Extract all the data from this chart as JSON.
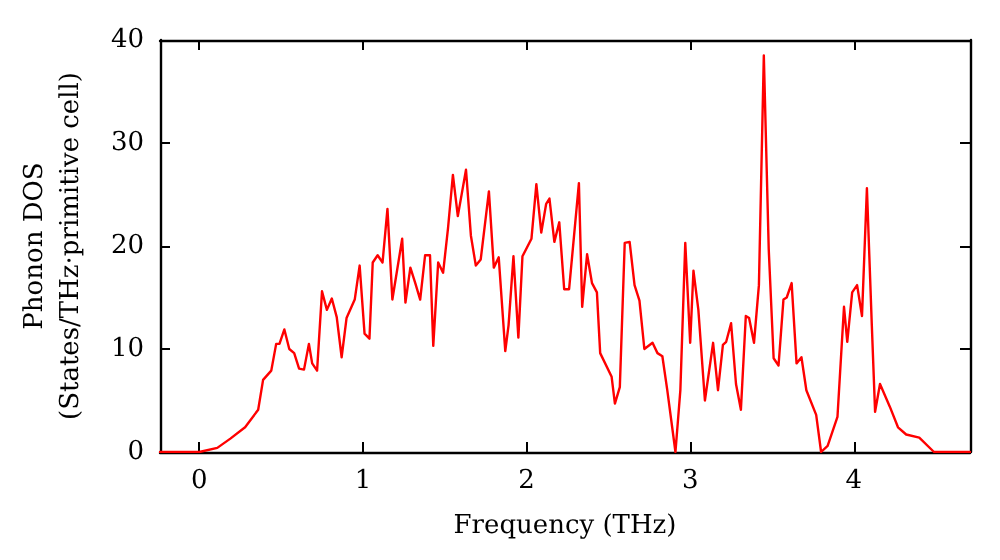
{
  "chart_data": {
    "type": "line",
    "xlabel": "Frequency (THz)",
    "ylabel": "Phonon DOS\n(States/THz·primitive cell)",
    "xlim": [
      -0.24,
      4.71
    ],
    "xticks": [
      0,
      1,
      2,
      3,
      4
    ],
    "ylim": [
      0,
      40
    ],
    "yticks": [
      0,
      10,
      20,
      30,
      40
    ],
    "marker": "none",
    "line_style": "solid",
    "series": [
      {
        "color": "#ff0000",
        "x": [
          -0.24,
          0,
          0.11,
          0.19,
          0.28,
          0.36,
          0.39,
          0.44,
          0.47,
          0.49,
          0.52,
          0.55,
          0.58,
          0.61,
          0.64,
          0.67,
          0.69,
          0.72,
          0.75,
          0.78,
          0.81,
          0.84,
          0.87,
          0.9,
          0.95,
          0.98,
          1.01,
          1.04,
          1.06,
          1.09,
          1.12,
          1.15,
          1.18,
          1.24,
          1.26,
          1.29,
          1.32,
          1.35,
          1.38,
          1.41,
          1.43,
          1.46,
          1.49,
          1.52,
          1.55,
          1.58,
          1.63,
          1.66,
          1.69,
          1.72,
          1.77,
          1.8,
          1.83,
          1.87,
          1.89,
          1.92,
          1.95,
          1.975,
          2.03,
          2.06,
          2.09,
          2.12,
          2.14,
          2.17,
          2.2,
          2.23,
          2.26,
          2.32,
          2.34,
          2.37,
          2.4,
          2.43,
          2.45,
          2.52,
          2.54,
          2.57,
          2.6,
          2.63,
          2.66,
          2.69,
          2.72,
          2.77,
          2.8,
          2.83,
          2.86,
          2.91,
          2.94,
          2.97,
          3.0,
          3.02,
          3.05,
          3.09,
          3.14,
          3.17,
          3.2,
          3.22,
          3.25,
          3.28,
          3.31,
          3.34,
          3.36,
          3.39,
          3.42,
          3.45,
          3.48,
          3.51,
          3.54,
          3.57,
          3.59,
          3.62,
          3.65,
          3.68,
          3.71,
          3.77,
          3.8,
          3.84,
          3.9,
          3.94,
          3.96,
          3.99,
          4.02,
          4.05,
          4.08,
          4.11,
          4.13,
          4.16,
          4.22,
          4.27,
          4.32,
          4.4,
          4.49,
          4.71
        ],
        "values": [
          0,
          0,
          0.4,
          1.3,
          2.4,
          4.1,
          7.0,
          7.9,
          10.5,
          10.5,
          11.9,
          10.0,
          9.6,
          8.1,
          8.0,
          10.5,
          8.6,
          7.9,
          15.6,
          13.8,
          14.9,
          13.1,
          9.2,
          13.0,
          14.8,
          18.1,
          11.5,
          11.0,
          18.4,
          19.1,
          18.4,
          23.6,
          14.8,
          20.7,
          14.5,
          17.9,
          16.4,
          14.8,
          19.1,
          19.1,
          10.3,
          18.4,
          17.4,
          21.7,
          26.9,
          22.9,
          27.4,
          21.0,
          18.1,
          18.7,
          25.3,
          17.9,
          18.9,
          9.8,
          12.3,
          19.0,
          11.1,
          19.0,
          20.7,
          26.0,
          21.3,
          24.1,
          24.6,
          20.4,
          22.3,
          15.8,
          15.8,
          26.1,
          14.1,
          19.2,
          16.4,
          15.5,
          9.6,
          7.3,
          4.7,
          6.3,
          20.3,
          20.4,
          16.2,
          14.7,
          10.0,
          10.6,
          9.6,
          9.3,
          6.0,
          0,
          6.0,
          20.3,
          10.6,
          17.6,
          13.8,
          5.0,
          10.6,
          6.0,
          10.4,
          10.7,
          12.5,
          6.6,
          4.1,
          13.2,
          13.0,
          10.6,
          16.2,
          38.5,
          19.7,
          9.1,
          8.4,
          14.8,
          15.0,
          16.4,
          8.6,
          9.2,
          6.0,
          3.6,
          0,
          0.6,
          3.4,
          14.1,
          10.7,
          15.5,
          16.2,
          13.2,
          25.6,
          12.3,
          3.9,
          6.6,
          4.4,
          2.4,
          1.7,
          1.4,
          0,
          0
        ]
      }
    ]
  }
}
